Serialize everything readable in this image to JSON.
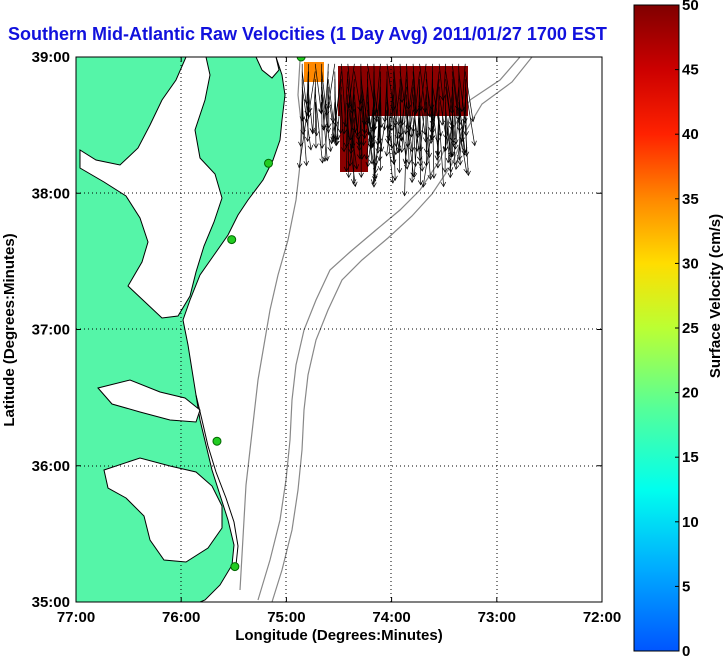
{
  "chart_data": {
    "type": "vector-field map",
    "title": "Southern Mid-Atlantic Raw Velocities (1 Day Avg) 2011/01/27 1700 EST",
    "xlabel": "Longitude (Degrees:Minutes)",
    "ylabel": "Latitude (Degrees:Minutes)",
    "x_ticks": [
      {
        "value": -77,
        "label": "77:00"
      },
      {
        "value": -76,
        "label": "76:00"
      },
      {
        "value": -75,
        "label": "75:00"
      },
      {
        "value": -74,
        "label": "74:00"
      },
      {
        "value": -73,
        "label": "73:00"
      },
      {
        "value": -72,
        "label": "72:00"
      }
    ],
    "y_ticks": [
      {
        "value": 39,
        "label": "39:00"
      },
      {
        "value": 38,
        "label": "38:00"
      },
      {
        "value": 37,
        "label": "37:00"
      },
      {
        "value": 36,
        "label": "36:00"
      },
      {
        "value": 35,
        "label": "35:00"
      }
    ],
    "xlim": [
      -77,
      -72
    ],
    "ylim": [
      35,
      39
    ],
    "grid": "dotted",
    "colorbar": {
      "label": "Surface Velocity (cm/s)",
      "range": [
        0,
        50
      ],
      "ticks": [
        {
          "value": 50,
          "label": "50"
        },
        {
          "value": 45,
          "label": "45"
        },
        {
          "value": 40,
          "label": "40"
        },
        {
          "value": 35,
          "label": "35"
        },
        {
          "value": 30,
          "label": "30"
        },
        {
          "value": 25,
          "label": "25"
        },
        {
          "value": 20,
          "label": "20"
        },
        {
          "value": 15,
          "label": "15"
        },
        {
          "value": 10,
          "label": "10"
        },
        {
          "value": 5,
          "label": "5"
        },
        {
          "value": 0,
          "label": "0"
        }
      ]
    },
    "velocity_field": {
      "lon_range": [
        -74.85,
        -73.3
      ],
      "lat_range": [
        38.5,
        38.95
      ],
      "typical_speed_cm_s": 50,
      "direction": "southward"
    },
    "radar_stations": [
      {
        "lon": -74.86,
        "lat": 39.0
      },
      {
        "lon": -75.17,
        "lat": 38.22
      },
      {
        "lon": -75.52,
        "lat": 37.66
      },
      {
        "lon": -75.66,
        "lat": 36.18
      },
      {
        "lon": -75.49,
        "lat": 35.26
      }
    ]
  },
  "colors": {
    "land": "#55f5a8",
    "coast": "#000000",
    "isobath": "#888888",
    "title": "#1111dd",
    "station": "#22cc22"
  }
}
